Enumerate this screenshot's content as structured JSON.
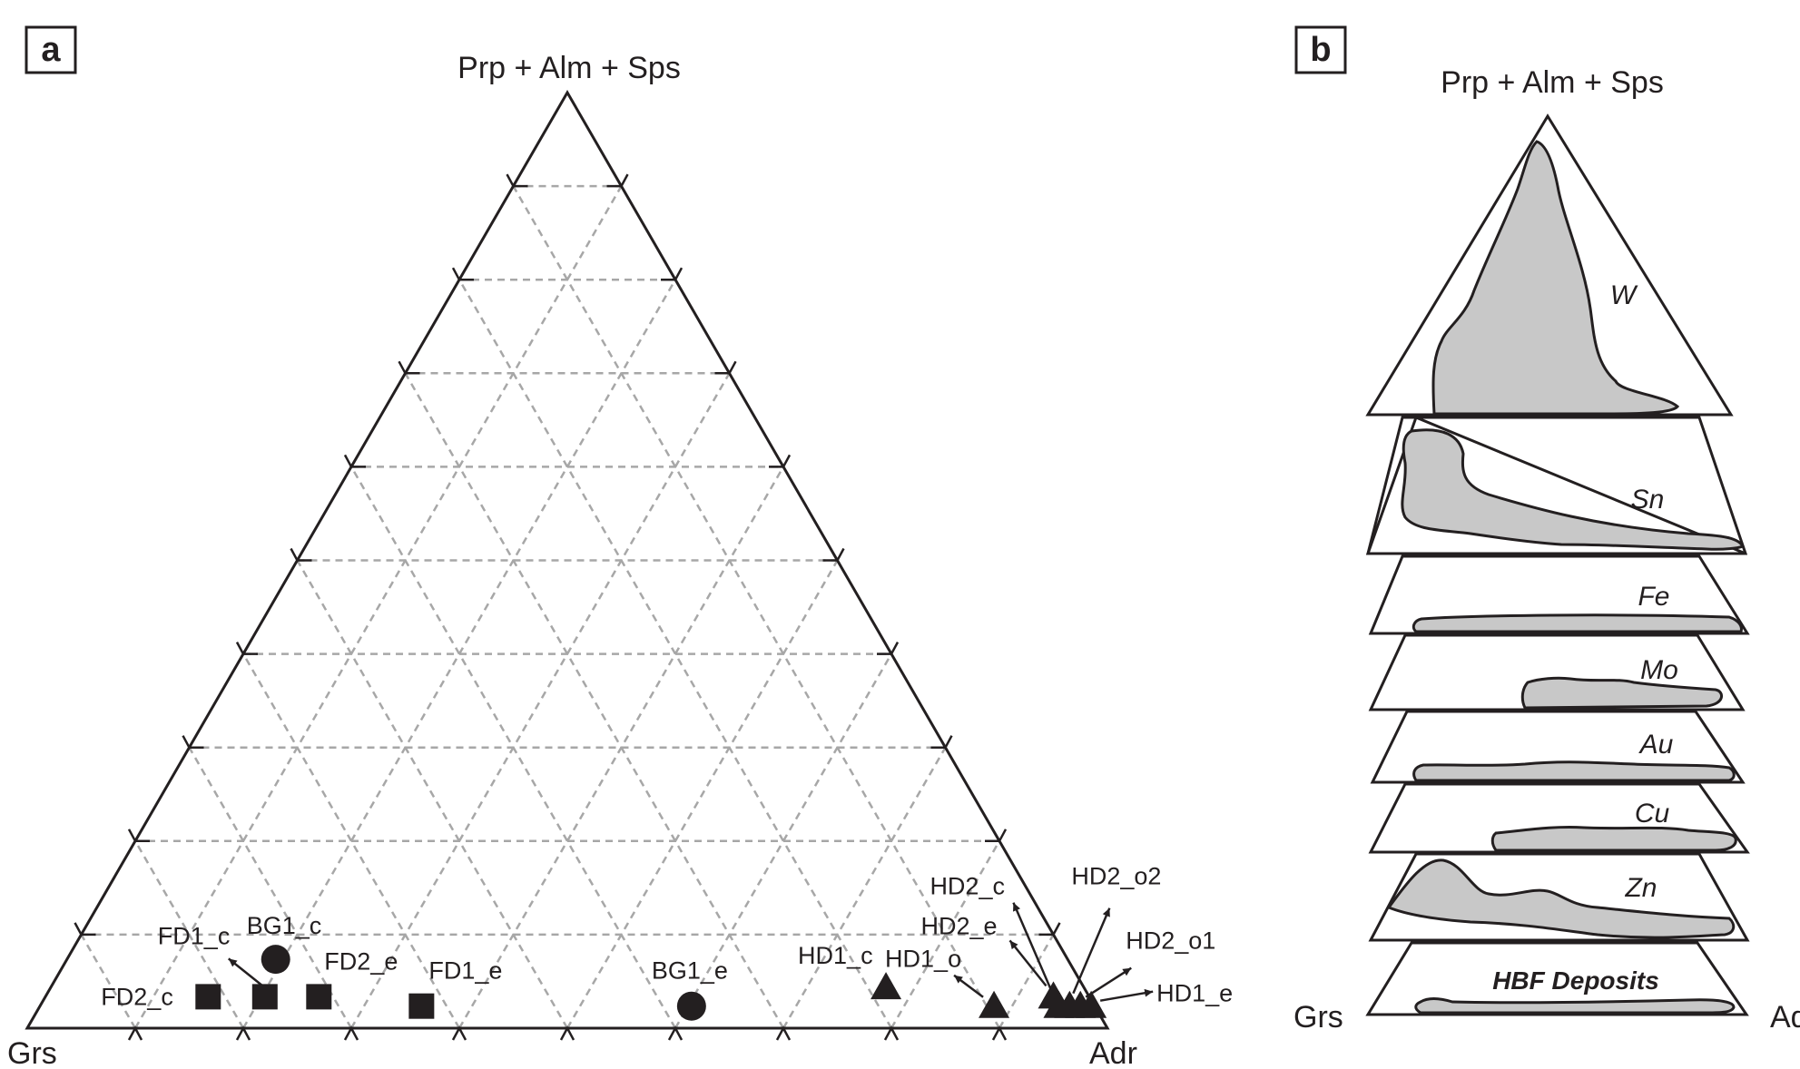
{
  "chart_data": [
    {
      "type": "scatter",
      "panel_label": "a",
      "ternary": true,
      "vertices": {
        "top": "Prp + Alm + Sps",
        "left": "Grs",
        "right": "Adr"
      },
      "grid": true,
      "grid_step_percent": 10,
      "points": [
        {
          "label": "FD2_c",
          "marker": "square",
          "top": 2,
          "adr": 16
        },
        {
          "label": "FD1_c",
          "marker": "square",
          "top": 2,
          "adr": 21
        },
        {
          "label": "FD2_e",
          "marker": "square",
          "top": 2,
          "adr": 26
        },
        {
          "label": "FD1_e",
          "marker": "square",
          "top": 1,
          "adr": 36
        },
        {
          "label": "BG1_c",
          "marker": "circle",
          "top": 6,
          "adr": 20
        },
        {
          "label": "BG1_e",
          "marker": "circle",
          "top": 1,
          "adr": 61
        },
        {
          "label": "HD1_c",
          "marker": "triangle",
          "top": 3,
          "adr": 78
        },
        {
          "label": "HD1_o",
          "marker": "triangle",
          "top": 1,
          "adr": 89
        },
        {
          "label": "HD2_e",
          "marker": "triangle",
          "top": 2,
          "adr": 94
        },
        {
          "label": "HD2_c",
          "marker": "triangle",
          "top": 1,
          "adr": 95
        },
        {
          "label": "HD2_o2",
          "marker": "triangle",
          "top": 1,
          "adr": 96
        },
        {
          "label": "HD2_o1",
          "marker": "triangle",
          "top": 1,
          "adr": 97
        },
        {
          "label": "HD1_e",
          "marker": "triangle",
          "top": 1,
          "adr": 98
        }
      ]
    },
    {
      "type": "area",
      "panel_label": "b",
      "ternary": true,
      "vertices": {
        "top": "Prp + Alm + Sps",
        "left": "Grs",
        "right": "Adr"
      },
      "fields": [
        "W",
        "Sn",
        "Fe",
        "Mo",
        "Au",
        "Cu",
        "Zn",
        "HBF Deposits"
      ],
      "fill_color": "#c8c8c8"
    }
  ],
  "colors": {
    "ink": "#231f20",
    "grid": "#a7a7a7",
    "field_fill": "#c8c8c8"
  }
}
